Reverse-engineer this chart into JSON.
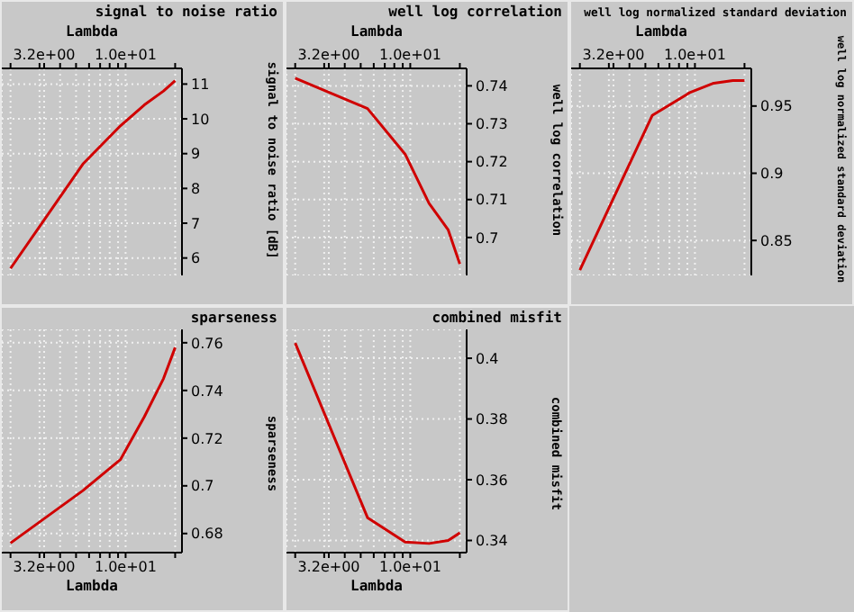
{
  "chart_data": [
    {
      "type": "line",
      "title": "signal to noise ratio",
      "xlabel": "Lambda",
      "ylabel": "signal to noise ratio [dB]",
      "log": "x",
      "xlim": [
        1.77,
        22
      ],
      "xticks": [
        {
          "value": 2,
          "label": null
        },
        {
          "value": 3,
          "label": null
        },
        {
          "value": 3.2,
          "label": "3.2e+00"
        },
        {
          "value": 4,
          "label": null
        },
        {
          "value": 5,
          "label": null
        },
        {
          "value": 6,
          "label": null
        },
        {
          "value": 7,
          "label": null
        },
        {
          "value": 8,
          "label": null
        },
        {
          "value": 9,
          "label": null
        },
        {
          "value": 10,
          "label": "1.0e+01"
        },
        {
          "value": 20,
          "label": null
        }
      ],
      "ylim": [
        5.5,
        11.45
      ],
      "yticks": [
        6,
        7,
        8,
        9,
        10,
        11
      ],
      "grid": true,
      "marker": "none",
      "line_style": "solid",
      "x": [
        2,
        5.5,
        9.3,
        13,
        17,
        20
      ],
      "series": [
        {
          "color": "#d00000",
          "values": [
            5.7,
            8.7,
            9.8,
            10.4,
            10.8,
            11.1
          ]
        }
      ]
    },
    {
      "type": "line",
      "title": "well log correlation",
      "xlabel": "Lambda",
      "ylabel": "well log correlation",
      "log": "x",
      "xlim": [
        1.77,
        22
      ],
      "xticks": [
        {
          "value": 2,
          "label": null
        },
        {
          "value": 3,
          "label": null
        },
        {
          "value": 3.2,
          "label": "3.2e+00"
        },
        {
          "value": 4,
          "label": null
        },
        {
          "value": 5,
          "label": null
        },
        {
          "value": 6,
          "label": null
        },
        {
          "value": 7,
          "label": null
        },
        {
          "value": 8,
          "label": null
        },
        {
          "value": 9,
          "label": null
        },
        {
          "value": 10,
          "label": "1.0e+01"
        },
        {
          "value": 20,
          "label": null
        }
      ],
      "ylim": [
        0.69,
        0.7446
      ],
      "yticks": [
        0.7,
        0.71,
        0.72,
        0.73,
        0.74
      ],
      "grid": true,
      "marker": "none",
      "line_style": "solid",
      "x": [
        2,
        5.5,
        9.3,
        13,
        17,
        20
      ],
      "series": [
        {
          "color": "#d00000",
          "values": [
            0.742,
            0.734,
            0.722,
            0.709,
            0.702,
            0.693
          ]
        }
      ]
    },
    {
      "type": "line",
      "title": "well log normalized standard deviation",
      "xlabel": "Lambda",
      "ylabel": "well log normalized standard deviation",
      "log": "x",
      "xlim": [
        1.77,
        22
      ],
      "xticks": [
        {
          "value": 2,
          "label": null
        },
        {
          "value": 3,
          "label": null
        },
        {
          "value": 3.2,
          "label": "3.2e+00"
        },
        {
          "value": 4,
          "label": null
        },
        {
          "value": 5,
          "label": null
        },
        {
          "value": 6,
          "label": null
        },
        {
          "value": 7,
          "label": null
        },
        {
          "value": 8,
          "label": null
        },
        {
          "value": 9,
          "label": null
        },
        {
          "value": 10,
          "label": "1.0e+01"
        },
        {
          "value": 20,
          "label": null
        }
      ],
      "ylim": [
        0.824,
        0.978
      ],
      "yticks": [
        0.85,
        0.9,
        0.95
      ],
      "grid": true,
      "marker": "none",
      "line_style": "solid",
      "x": [
        2,
        5.5,
        9.3,
        13,
        17,
        20
      ],
      "series": [
        {
          "color": "#d00000",
          "values": [
            0.828,
            0.943,
            0.96,
            0.967,
            0.969,
            0.969
          ]
        }
      ]
    },
    {
      "type": "line",
      "title": "sparseness",
      "xlabel": "Lambda",
      "ylabel": "sparseness",
      "log": "x",
      "xlim": [
        1.77,
        22
      ],
      "xticks": [
        {
          "value": 2,
          "label": null
        },
        {
          "value": 3,
          "label": null
        },
        {
          "value": 3.2,
          "label": "3.2e+00"
        },
        {
          "value": 4,
          "label": null
        },
        {
          "value": 5,
          "label": null
        },
        {
          "value": 6,
          "label": null
        },
        {
          "value": 7,
          "label": null
        },
        {
          "value": 8,
          "label": null
        },
        {
          "value": 9,
          "label": null
        },
        {
          "value": 10,
          "label": "1.0e+01"
        },
        {
          "value": 20,
          "label": null
        }
      ],
      "ylim": [
        0.672,
        0.7656
      ],
      "yticks": [
        0.68,
        0.7,
        0.72,
        0.74,
        0.76
      ],
      "grid": true,
      "marker": "none",
      "line_style": "solid",
      "x": [
        2,
        5.5,
        9.3,
        13,
        17,
        20
      ],
      "series": [
        {
          "color": "#d00000",
          "values": [
            0.676,
            0.698,
            0.711,
            0.729,
            0.745,
            0.758
          ]
        }
      ]
    },
    {
      "type": "line",
      "title": "combined misfit",
      "xlabel": "Lambda",
      "ylabel": "combined misfit",
      "log": "x",
      "xlim": [
        1.77,
        22
      ],
      "xticks": [
        {
          "value": 2,
          "label": null
        },
        {
          "value": 3,
          "label": null
        },
        {
          "value": 3.2,
          "label": "3.2e+00"
        },
        {
          "value": 4,
          "label": null
        },
        {
          "value": 5,
          "label": null
        },
        {
          "value": 6,
          "label": null
        },
        {
          "value": 7,
          "label": null
        },
        {
          "value": 8,
          "label": null
        },
        {
          "value": 9,
          "label": null
        },
        {
          "value": 10,
          "label": "1.0e+01"
        },
        {
          "value": 20,
          "label": null
        }
      ],
      "ylim": [
        0.336,
        0.4095
      ],
      "yticks": [
        0.34,
        0.36,
        0.38,
        0.4
      ],
      "grid": true,
      "marker": "none",
      "line_style": "solid",
      "x": [
        2,
        5.5,
        9.3,
        13,
        17,
        20
      ],
      "series": [
        {
          "color": "#d00000",
          "values": [
            0.405,
            0.3475,
            0.3395,
            0.339,
            0.34,
            0.3425
          ]
        }
      ]
    }
  ]
}
